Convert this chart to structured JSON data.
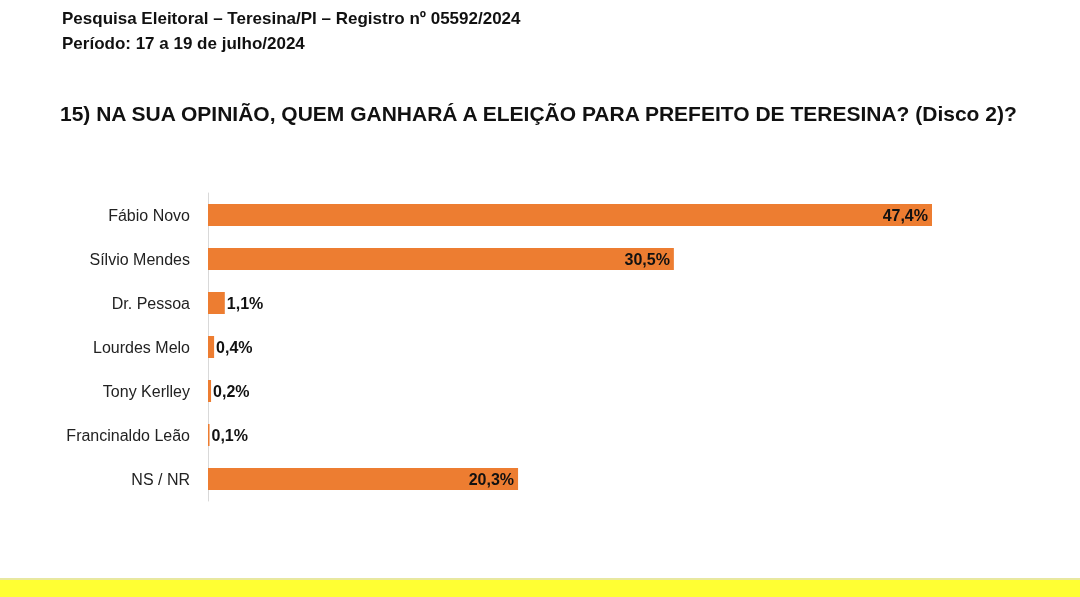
{
  "chart_data": {
    "type": "bar",
    "orientation": "horizontal",
    "title": "15) NA SUA OPINIÃO, QUEM GANHARÁ A ELEIÇÃO PARA PREFEITO   DE TERESINA? (Disco 2)?",
    "annotations": [
      "Pesquisa Eleitoral – Teresina/PI  – Registro nº 05592/2024",
      "Período: 17 a 19 de julho/2024"
    ],
    "categories": [
      "Fábio Novo",
      "Sílvio Mendes",
      "Dr. Pessoa",
      "Lourdes Melo",
      "Tony Kerlley",
      "Francinaldo Leão",
      "NS / NR"
    ],
    "values": [
      47.4,
      30.5,
      1.1,
      0.4,
      0.2,
      0.1,
      20.3
    ],
    "value_labels": [
      "47,4%",
      "30,5%",
      "1,1%",
      "0,4%",
      "0,2%",
      "0,1%",
      "20,3%"
    ],
    "color": "#ed7d31"
  }
}
